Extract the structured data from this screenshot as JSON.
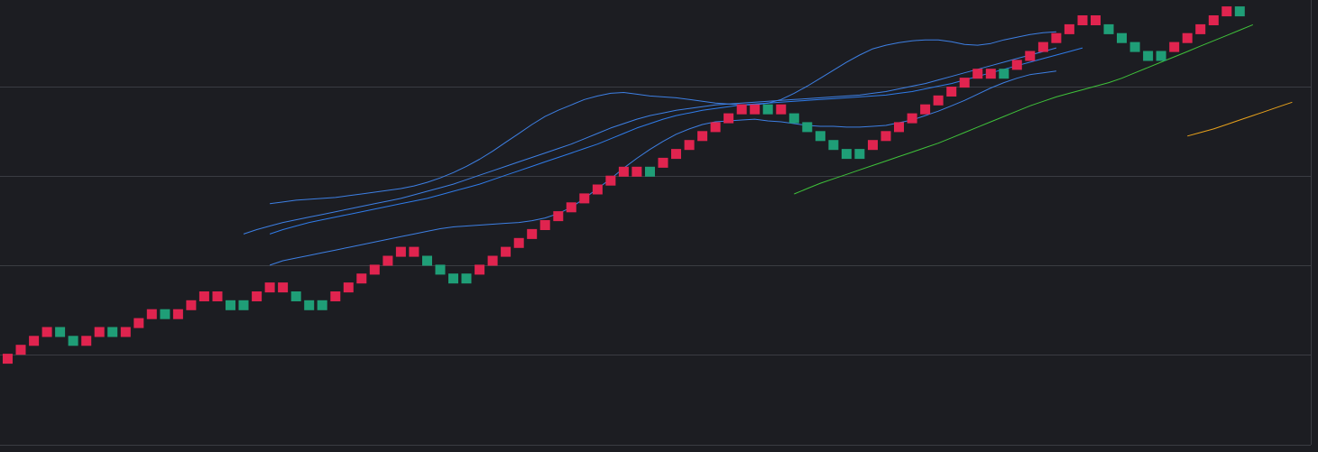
{
  "chart_data": {
    "type": "renko",
    "title": "",
    "xlabel": "",
    "ylabel": "",
    "grid": true,
    "colors": {
      "background": "#1c1d22",
      "grid": "#3a3c42",
      "axis": "#3a3c42",
      "bullish_brick": "#e0244f",
      "bearish_brick": "#1f9e77",
      "bb_upper": "#3d7fe3",
      "bb_middle": "#3d7fe3",
      "bb_lower": "#3d7fe3",
      "ma_fast": "#2f7be8",
      "ma_medium": "#3fc23a",
      "ma_slow": "#e8a21c"
    },
    "bricks": {
      "box_size": 1,
      "directions": [
        1,
        1,
        1,
        1,
        -1,
        -1,
        1,
        1,
        -1,
        1,
        1,
        1,
        -1,
        1,
        1,
        1,
        1,
        -1,
        -1,
        1,
        1,
        1,
        -1,
        -1,
        -1,
        1,
        1,
        1,
        1,
        1,
        1,
        1,
        -1,
        -1,
        -1,
        -1,
        1,
        1,
        1,
        1,
        1,
        1,
        1,
        1,
        1,
        1,
        1,
        1,
        1,
        -1,
        1,
        1,
        1,
        1,
        1,
        1,
        1,
        1,
        -1,
        1,
        -1,
        -1,
        -1,
        -1,
        -1,
        -1,
        1,
        1,
        1,
        1,
        1,
        1,
        1,
        1,
        1,
        1,
        -1,
        1,
        1,
        1,
        1,
        1,
        1,
        1,
        -1,
        -1,
        -1,
        -1,
        -1,
        1,
        1,
        1,
        1,
        1,
        -1
      ],
      "open": [
        0,
        1,
        2,
        3,
        4,
        3,
        2,
        3,
        4,
        3,
        4,
        5,
        6,
        5,
        6,
        7,
        8,
        7,
        6,
        7,
        8,
        9,
        8,
        7,
        6,
        7,
        8,
        9,
        10,
        11,
        12,
        13,
        12,
        11,
        10,
        9,
        10,
        11,
        12,
        13,
        14,
        15,
        16,
        17,
        18,
        19,
        20,
        21,
        22,
        21,
        22,
        23,
        24,
        25,
        26,
        27,
        28,
        29,
        28,
        29,
        28,
        27,
        26,
        25,
        24,
        23,
        24,
        25,
        26,
        27,
        28,
        29,
        30,
        31,
        32,
        33,
        32,
        33,
        34,
        35,
        36,
        37,
        38,
        39,
        38,
        37,
        36,
        35,
        34,
        35,
        36,
        37,
        38,
        39,
        40
      ],
      "close": [
        1,
        2,
        3,
        4,
        3,
        2,
        3,
        4,
        3,
        4,
        5,
        6,
        5,
        6,
        7,
        8,
        7,
        6,
        7,
        8,
        9,
        8,
        7,
        6,
        7,
        8,
        9,
        10,
        11,
        12,
        13,
        12,
        11,
        10,
        9,
        10,
        11,
        12,
        13,
        14,
        15,
        16,
        17,
        18,
        19,
        20,
        21,
        22,
        21,
        22,
        23,
        24,
        25,
        26,
        27,
        28,
        29,
        28,
        29,
        28,
        27,
        26,
        25,
        24,
        23,
        24,
        25,
        26,
        27,
        28,
        29,
        30,
        31,
        32,
        33,
        32,
        33,
        34,
        35,
        36,
        37,
        38,
        39,
        38,
        37,
        36,
        35,
        34,
        35,
        36,
        37,
        38,
        39,
        40,
        39
      ]
    },
    "series": [
      {
        "key": "bb_upper",
        "start_index": 20,
        "values": [
          17.9,
          18.1,
          18.3,
          18.4,
          18.5,
          18.6,
          18.8,
          19.0,
          19.2,
          19.4,
          19.6,
          19.9,
          20.3,
          20.8,
          21.4,
          22.1,
          22.9,
          23.8,
          24.8,
          25.8,
          26.8,
          27.7,
          28.4,
          29.0,
          29.6,
          30.0,
          30.3,
          30.4,
          30.2,
          30.0,
          29.9,
          29.8,
          29.6,
          29.4,
          29.2,
          29.1,
          29.0,
          29.0,
          29.2,
          29.6,
          30.3,
          31.1,
          32.0,
          32.9,
          33.8,
          34.6,
          35.3,
          35.7,
          36.0,
          36.2,
          36.3,
          36.3,
          36.1,
          35.8,
          35.7,
          35.9,
          36.3,
          36.6,
          36.9,
          37.1,
          37.2
        ]
      },
      {
        "key": "bb_middle",
        "start_index": 18,
        "values": [
          14.5,
          15.0,
          15.4,
          15.8,
          16.1,
          16.4,
          16.7,
          17.0,
          17.3,
          17.6,
          17.9,
          18.2,
          18.5,
          18.9,
          19.3,
          19.7,
          20.1,
          20.6,
          21.1,
          21.6,
          22.1,
          22.6,
          23.1,
          23.6,
          24.1,
          24.6,
          25.2,
          25.8,
          26.4,
          26.9,
          27.4,
          27.8,
          28.1,
          28.4,
          28.6,
          28.8,
          29.0,
          29.1,
          29.2,
          29.3,
          29.4,
          29.5,
          29.6,
          29.7,
          29.8,
          29.9,
          30.0,
          30.1,
          30.3,
          30.5,
          30.8,
          31.1,
          31.4,
          31.8,
          32.2,
          32.6,
          33.0,
          33.4,
          33.8,
          34.2,
          34.6,
          35.0,
          35.4
        ]
      },
      {
        "key": "bb_lower",
        "start_index": 20,
        "values": [
          11.0,
          11.5,
          11.8,
          12.1,
          12.4,
          12.7,
          13.0,
          13.3,
          13.6,
          13.9,
          14.2,
          14.5,
          14.8,
          15.1,
          15.3,
          15.4,
          15.5,
          15.6,
          15.7,
          15.8,
          16.0,
          16.3,
          16.8,
          17.5,
          18.5,
          19.6,
          20.7,
          21.9,
          23.0,
          24.0,
          24.9,
          25.7,
          26.3,
          26.8,
          27.1,
          27.2,
          27.3,
          27.4,
          27.2,
          27.1,
          26.9,
          26.7,
          26.6,
          26.6,
          26.5,
          26.5,
          26.6,
          26.7,
          27.0,
          27.3,
          27.8,
          28.3,
          28.9,
          29.5,
          30.2,
          30.9,
          31.5,
          32.0,
          32.4,
          32.6,
          32.8
        ]
      },
      {
        "key": "ma_fast",
        "start_index": 20,
        "values": [
          14.5,
          15.0,
          15.4,
          15.8,
          16.1,
          16.4,
          16.7,
          17.0,
          17.3,
          17.6,
          17.9,
          18.2,
          18.5,
          18.9,
          19.3,
          19.7,
          20.1,
          20.6,
          21.1,
          21.6,
          22.1,
          22.6,
          23.1,
          23.6,
          24.1,
          24.6,
          25.2,
          25.8,
          26.4,
          26.9,
          27.4,
          27.8,
          28.1,
          28.4,
          28.6,
          28.8,
          29.0,
          29.1,
          29.2,
          29.3,
          29.4,
          29.5,
          29.6,
          29.7,
          29.8,
          29.9,
          30.0,
          30.1,
          30.3,
          30.5,
          30.8,
          31.1,
          31.4,
          31.8,
          32.2,
          32.6,
          33.0,
          33.4,
          33.8,
          34.2,
          34.6,
          35.0,
          35.4
        ]
      },
      {
        "key": "ma_medium",
        "start_index": 60,
        "values": [
          19.0,
          19.6,
          20.2,
          20.7,
          21.2,
          21.7,
          22.2,
          22.7,
          23.2,
          23.7,
          24.2,
          24.7,
          25.3,
          25.9,
          26.5,
          27.1,
          27.7,
          28.3,
          28.9,
          29.4,
          29.9,
          30.3,
          30.7,
          31.1,
          31.5,
          32.0,
          32.6,
          33.2,
          33.8,
          34.4,
          35.0,
          35.6,
          36.2,
          36.8,
          37.4,
          38.0
        ]
      },
      {
        "key": "ma_slow",
        "start_index": 90,
        "values": [
          25.5,
          25.9,
          26.3,
          26.8,
          27.3,
          27.8,
          28.3,
          28.8,
          29.3
        ]
      }
    ]
  }
}
